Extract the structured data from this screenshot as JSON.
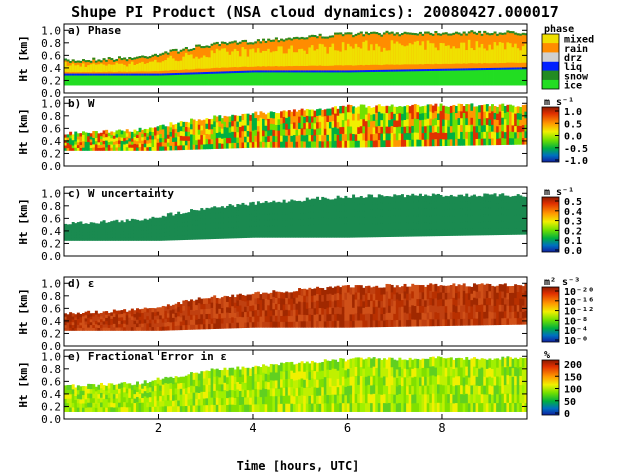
{
  "title": "Shupe PI Product (NSA cloud dynamics): 20080427.000017",
  "xlabel": "Time [hours, UTC]",
  "ylabel": "Ht [km]",
  "chart_data": [
    {
      "type": "heatmap",
      "title": "a) Phase",
      "xlabel": "Time [hours, UTC]",
      "ylabel": "Ht [km]",
      "x_ticks": [
        2,
        4,
        6,
        8
      ],
      "y_ticks": [
        "0.0",
        "0.2",
        "0.4",
        "0.6",
        "0.8",
        "1.0"
      ],
      "xlim": [
        0,
        9.8
      ],
      "ylim": [
        0,
        1.1
      ],
      "legend_title": "phase",
      "legend": [
        "mixed",
        "rain",
        "drz",
        "liq",
        "snow",
        "ice"
      ],
      "legend_colors": [
        "#f0e000",
        "#ff8c00",
        "#d0d0d0",
        "#0020ff",
        "#228b22",
        "#22dd22"
      ],
      "cloud_top_km": [
        [
          0,
          0.55
        ],
        [
          1.5,
          0.6
        ],
        [
          3,
          0.8
        ],
        [
          4.5,
          0.9
        ],
        [
          6,
          0.98
        ],
        [
          7.5,
          1.0
        ],
        [
          9.8,
          1.0
        ]
      ],
      "cloud_base_km": [
        [
          0,
          0.3
        ],
        [
          2,
          0.3
        ],
        [
          4,
          0.35
        ],
        [
          6,
          0.35
        ],
        [
          9.8,
          0.4
        ]
      ]
    },
    {
      "type": "heatmap",
      "title": "b) W",
      "ylabel": "Ht [km]",
      "units_label": "m s⁻¹",
      "colorbar_ticks": [
        "1.0",
        "0.5",
        "0.0",
        "-0.5",
        "-1.0"
      ],
      "clim": [
        -1.0,
        1.0
      ]
    },
    {
      "type": "heatmap",
      "title": "c) W uncertainty",
      "ylabel": "Ht [km]",
      "units_label": "m s⁻¹",
      "colorbar_ticks": [
        "0.5",
        "0.4",
        "0.3",
        "0.2",
        "0.1",
        "0.0"
      ],
      "clim": [
        0,
        0.5
      ]
    },
    {
      "type": "heatmap",
      "title": "d) ε",
      "ylabel": "Ht [km]",
      "units_label": "m² s⁻³",
      "colorbar_ticks": [
        "10⁻²⁰",
        "10⁻¹⁶",
        "10⁻¹²",
        "10⁻⁸",
        "10⁻⁴",
        "10⁻⁰"
      ],
      "colorbar_scale": "log"
    },
    {
      "type": "heatmap",
      "title": "e) Fractional Error in ε",
      "ylabel": "Ht [km]",
      "units_label": "%",
      "colorbar_ticks": [
        "200",
        "150",
        "100",
        "50",
        "0"
      ],
      "clim": [
        0,
        200
      ]
    }
  ],
  "colors": {
    "mixed": "#f0e000",
    "rain": "#ff8c00",
    "ice": "#22dd22",
    "uncertainty_fill": "#1a8a50",
    "epsilon_fill": "#c04010"
  }
}
